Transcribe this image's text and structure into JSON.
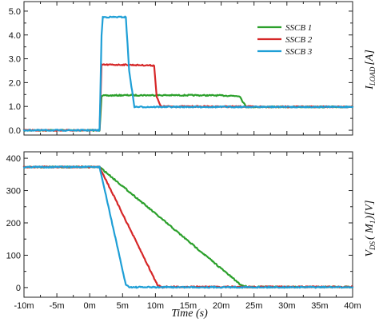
{
  "chart_data": {
    "type": "line",
    "x_axis": {
      "label": "Time (s)",
      "ticks": [
        "-10m",
        "-5m",
        "0m",
        "5m",
        "10m",
        "15m",
        "20m",
        "25m",
        "30m",
        "35m",
        "40m"
      ],
      "range": [
        -10,
        40
      ],
      "unit": "ms"
    },
    "legend": {
      "placement": "top-right",
      "entries": [
        {
          "name": "SSCB 1",
          "color": "#2ca02c"
        },
        {
          "name": "SSCB 2",
          "color": "#d62728"
        },
        {
          "name": "SSCB 3",
          "color": "#1f9fd6"
        }
      ]
    },
    "panels": [
      {
        "ylabel_main": "I",
        "ylabel_sub": "LOAD",
        "ylabel_unit": "[A]",
        "yticks": [
          "0.0",
          "1.0",
          "2.0",
          "3.0",
          "4.0",
          "5.0"
        ],
        "ylim": [
          -0.2,
          5.4
        ],
        "series": [
          {
            "name": "SSCB 1",
            "color": "#2ca02c",
            "x": [
              -10,
              1.5,
              1.8,
              5,
              10,
              15,
              20,
              22.8,
              23.3,
              23.8,
              40
            ],
            "y": [
              0,
              0,
              1.45,
              1.47,
              1.47,
              1.47,
              1.46,
              1.44,
              1.2,
              0.98,
              0.98
            ]
          },
          {
            "name": "SSCB 2",
            "color": "#d62728",
            "x": [
              -10,
              1.5,
              1.8,
              5,
              9.8,
              10.2,
              10.8,
              40
            ],
            "y": [
              0,
              0,
              2.75,
              2.75,
              2.72,
              1.4,
              1.0,
              0.98
            ]
          },
          {
            "name": "SSCB 3",
            "color": "#1f9fd6",
            "x": [
              -10,
              1.5,
              1.8,
              2.0,
              5.5,
              6.0,
              6.8,
              40
            ],
            "y": [
              0,
              0,
              4.0,
              4.75,
              4.75,
              2.5,
              0.98,
              0.98
            ]
          }
        ]
      },
      {
        "ylabel_main": "V",
        "ylabel_sub": "DS",
        "ylabel_mid": "( M",
        "ylabel_mid_sub": "1",
        "ylabel_unit": ")[V]",
        "yticks": [
          "0",
          "100",
          "200",
          "300",
          "400"
        ],
        "ylim": [
          -30,
          420
        ],
        "series": [
          {
            "name": "SSCB 1",
            "color": "#2ca02c",
            "x": [
              -10,
              1.5,
              23,
              24,
              40
            ],
            "y": [
              373,
              373,
              8,
              2,
              2
            ]
          },
          {
            "name": "SSCB 2",
            "color": "#d62728",
            "x": [
              -10,
              1.5,
              10.3,
              11,
              40
            ],
            "y": [
              373,
              373,
              8,
              2,
              2
            ]
          },
          {
            "name": "SSCB 3",
            "color": "#1f9fd6",
            "x": [
              -10,
              1.5,
              5.5,
              6.2,
              40
            ],
            "y": [
              373,
              373,
              8,
              1,
              1
            ]
          }
        ]
      }
    ]
  }
}
